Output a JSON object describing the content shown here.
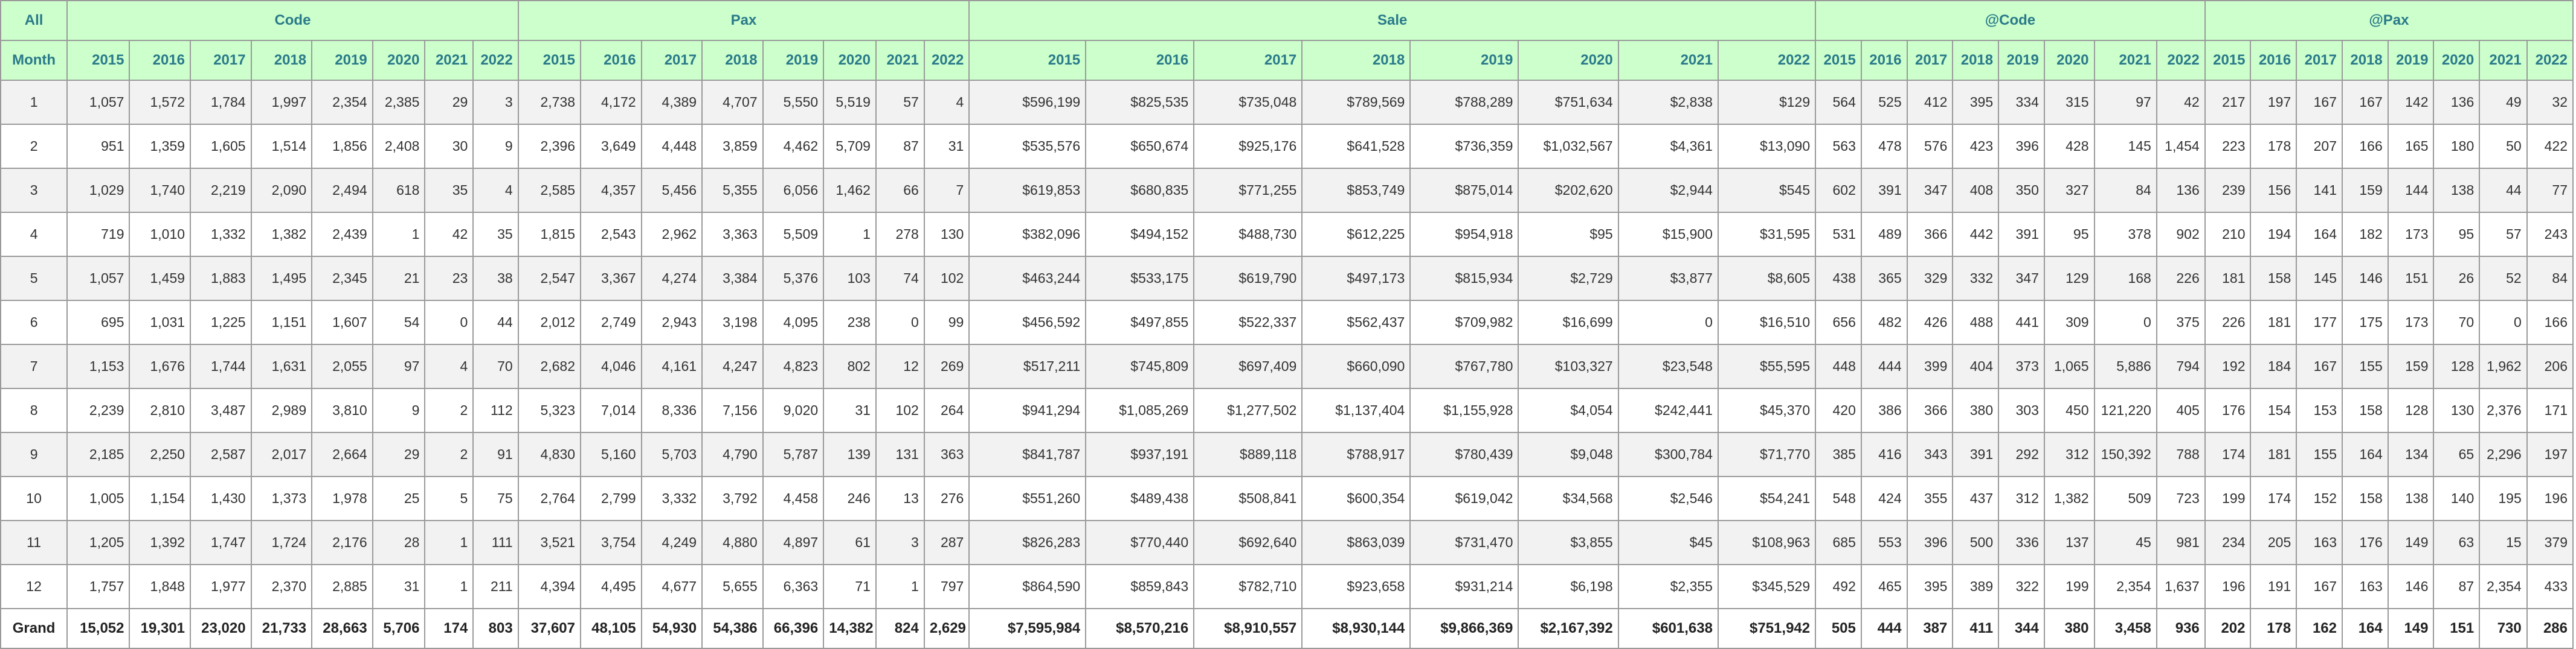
{
  "header": {
    "corner": "All",
    "month": "Month",
    "groups": [
      {
        "name": "Code"
      },
      {
        "name": "Pax"
      },
      {
        "name": "Sale"
      },
      {
        "name": "@Code"
      },
      {
        "name": "@Pax"
      }
    ],
    "years": [
      "2015",
      "2016",
      "2017",
      "2018",
      "2019",
      "2020",
      "2021",
      "2022"
    ]
  },
  "rows": [
    {
      "month": "1",
      "code": [
        "1,057",
        "1,572",
        "1,784",
        "1,997",
        "2,354",
        "2,385",
        "29",
        "3"
      ],
      "pax": [
        "2,738",
        "4,172",
        "4,389",
        "4,707",
        "5,550",
        "5,519",
        "57",
        "4"
      ],
      "sale": [
        "$596,199",
        "$825,535",
        "$735,048",
        "$789,569",
        "$788,289",
        "$751,634",
        "$2,838",
        "$129"
      ],
      "acode": [
        "564",
        "525",
        "412",
        "395",
        "334",
        "315",
        "97",
        "42"
      ],
      "apax": [
        "217",
        "197",
        "167",
        "167",
        "142",
        "136",
        "49",
        "32"
      ]
    },
    {
      "month": "2",
      "code": [
        "951",
        "1,359",
        "1,605",
        "1,514",
        "1,856",
        "2,408",
        "30",
        "9"
      ],
      "pax": [
        "2,396",
        "3,649",
        "4,448",
        "3,859",
        "4,462",
        "5,709",
        "87",
        "31"
      ],
      "sale": [
        "$535,576",
        "$650,674",
        "$925,176",
        "$641,528",
        "$736,359",
        "$1,032,567",
        "$4,361",
        "$13,090"
      ],
      "acode": [
        "563",
        "478",
        "576",
        "423",
        "396",
        "428",
        "145",
        "1,454"
      ],
      "apax": [
        "223",
        "178",
        "207",
        "166",
        "165",
        "180",
        "50",
        "422"
      ]
    },
    {
      "month": "3",
      "code": [
        "1,029",
        "1,740",
        "2,219",
        "2,090",
        "2,494",
        "618",
        "35",
        "4"
      ],
      "pax": [
        "2,585",
        "4,357",
        "5,456",
        "5,355",
        "6,056",
        "1,462",
        "66",
        "7"
      ],
      "sale": [
        "$619,853",
        "$680,835",
        "$771,255",
        "$853,749",
        "$875,014",
        "$202,620",
        "$2,944",
        "$545"
      ],
      "acode": [
        "602",
        "391",
        "347",
        "408",
        "350",
        "327",
        "84",
        "136"
      ],
      "apax": [
        "239",
        "156",
        "141",
        "159",
        "144",
        "138",
        "44",
        "77"
      ]
    },
    {
      "month": "4",
      "code": [
        "719",
        "1,010",
        "1,332",
        "1,382",
        "2,439",
        "1",
        "42",
        "35"
      ],
      "pax": [
        "1,815",
        "2,543",
        "2,962",
        "3,363",
        "5,509",
        "1",
        "278",
        "130"
      ],
      "sale": [
        "$382,096",
        "$494,152",
        "$488,730",
        "$612,225",
        "$954,918",
        "$95",
        "$15,900",
        "$31,595"
      ],
      "acode": [
        "531",
        "489",
        "366",
        "442",
        "391",
        "95",
        "378",
        "902"
      ],
      "apax": [
        "210",
        "194",
        "164",
        "182",
        "173",
        "95",
        "57",
        "243"
      ]
    },
    {
      "month": "5",
      "code": [
        "1,057",
        "1,459",
        "1,883",
        "1,495",
        "2,345",
        "21",
        "23",
        "38"
      ],
      "pax": [
        "2,547",
        "3,367",
        "4,274",
        "3,384",
        "5,376",
        "103",
        "74",
        "102"
      ],
      "sale": [
        "$463,244",
        "$533,175",
        "$619,790",
        "$497,173",
        "$815,934",
        "$2,729",
        "$3,877",
        "$8,605"
      ],
      "acode": [
        "438",
        "365",
        "329",
        "332",
        "347",
        "129",
        "168",
        "226"
      ],
      "apax": [
        "181",
        "158",
        "145",
        "146",
        "151",
        "26",
        "52",
        "84"
      ]
    },
    {
      "month": "6",
      "code": [
        "695",
        "1,031",
        "1,225",
        "1,151",
        "1,607",
        "54",
        "0",
        "44"
      ],
      "pax": [
        "2,012",
        "2,749",
        "2,943",
        "3,198",
        "4,095",
        "238",
        "0",
        "99"
      ],
      "sale": [
        "$456,592",
        "$497,855",
        "$522,337",
        "$562,437",
        "$709,982",
        "$16,699",
        "0",
        "$16,510"
      ],
      "acode": [
        "656",
        "482",
        "426",
        "488",
        "441",
        "309",
        "0",
        "375"
      ],
      "apax": [
        "226",
        "181",
        "177",
        "175",
        "173",
        "70",
        "0",
        "166"
      ]
    },
    {
      "month": "7",
      "code": [
        "1,153",
        "1,676",
        "1,744",
        "1,631",
        "2,055",
        "97",
        "4",
        "70"
      ],
      "pax": [
        "2,682",
        "4,046",
        "4,161",
        "4,247",
        "4,823",
        "802",
        "12",
        "269"
      ],
      "sale": [
        "$517,211",
        "$745,809",
        "$697,409",
        "$660,090",
        "$767,780",
        "$103,327",
        "$23,548",
        "$55,595"
      ],
      "acode": [
        "448",
        "444",
        "399",
        "404",
        "373",
        "1,065",
        "5,886",
        "794"
      ],
      "apax": [
        "192",
        "184",
        "167",
        "155",
        "159",
        "128",
        "1,962",
        "206"
      ]
    },
    {
      "month": "8",
      "code": [
        "2,239",
        "2,810",
        "3,487",
        "2,989",
        "3,810",
        "9",
        "2",
        "112"
      ],
      "pax": [
        "5,323",
        "7,014",
        "8,336",
        "7,156",
        "9,020",
        "31",
        "102",
        "264"
      ],
      "sale": [
        "$941,294",
        "$1,085,269",
        "$1,277,502",
        "$1,137,404",
        "$1,155,928",
        "$4,054",
        "$242,441",
        "$45,370"
      ],
      "acode": [
        "420",
        "386",
        "366",
        "380",
        "303",
        "450",
        "121,220",
        "405"
      ],
      "apax": [
        "176",
        "154",
        "153",
        "158",
        "128",
        "130",
        "2,376",
        "171"
      ]
    },
    {
      "month": "9",
      "code": [
        "2,185",
        "2,250",
        "2,587",
        "2,017",
        "2,664",
        "29",
        "2",
        "91"
      ],
      "pax": [
        "4,830",
        "5,160",
        "5,703",
        "4,790",
        "5,787",
        "139",
        "131",
        "363"
      ],
      "sale": [
        "$841,787",
        "$937,191",
        "$889,118",
        "$788,917",
        "$780,439",
        "$9,048",
        "$300,784",
        "$71,770"
      ],
      "acode": [
        "385",
        "416",
        "343",
        "391",
        "292",
        "312",
        "150,392",
        "788"
      ],
      "apax": [
        "174",
        "181",
        "155",
        "164",
        "134",
        "65",
        "2,296",
        "197"
      ]
    },
    {
      "month": "10",
      "code": [
        "1,005",
        "1,154",
        "1,430",
        "1,373",
        "1,978",
        "25",
        "5",
        "75"
      ],
      "pax": [
        "2,764",
        "2,799",
        "3,332",
        "3,792",
        "4,458",
        "246",
        "13",
        "276"
      ],
      "sale": [
        "$551,260",
        "$489,438",
        "$508,841",
        "$600,354",
        "$619,042",
        "$34,568",
        "$2,546",
        "$54,241"
      ],
      "acode": [
        "548",
        "424",
        "355",
        "437",
        "312",
        "1,382",
        "509",
        "723"
      ],
      "apax": [
        "199",
        "174",
        "152",
        "158",
        "138",
        "140",
        "195",
        "196"
      ]
    },
    {
      "month": "11",
      "code": [
        "1,205",
        "1,392",
        "1,747",
        "1,724",
        "2,176",
        "28",
        "1",
        "111"
      ],
      "pax": [
        "3,521",
        "3,754",
        "4,249",
        "4,880",
        "4,897",
        "61",
        "3",
        "287"
      ],
      "sale": [
        "$826,283",
        "$770,440",
        "$692,640",
        "$863,039",
        "$731,470",
        "$3,855",
        "$45",
        "$108,963"
      ],
      "acode": [
        "685",
        "553",
        "396",
        "500",
        "336",
        "137",
        "45",
        "981"
      ],
      "apax": [
        "234",
        "205",
        "163",
        "176",
        "149",
        "63",
        "15",
        "379"
      ]
    },
    {
      "month": "12",
      "code": [
        "1,757",
        "1,848",
        "1,977",
        "2,370",
        "2,885",
        "31",
        "1",
        "211"
      ],
      "pax": [
        "4,394",
        "4,495",
        "4,677",
        "5,655",
        "6,363",
        "71",
        "1",
        "797"
      ],
      "sale": [
        "$864,590",
        "$859,843",
        "$782,710",
        "$923,658",
        "$931,214",
        "$6,198",
        "$2,355",
        "$345,529"
      ],
      "acode": [
        "492",
        "465",
        "395",
        "389",
        "322",
        "199",
        "2,354",
        "1,637"
      ],
      "apax": [
        "196",
        "191",
        "167",
        "163",
        "146",
        "87",
        "2,354",
        "433"
      ]
    }
  ],
  "grand": {
    "month": "Grand",
    "code": [
      "15,052",
      "19,301",
      "23,020",
      "21,733",
      "28,663",
      "5,706",
      "174",
      "803"
    ],
    "pax": [
      "37,607",
      "48,105",
      "54,930",
      "54,386",
      "66,396",
      "14,382",
      "824",
      "2,629"
    ],
    "sale": [
      "$7,595,984",
      "$8,570,216",
      "$8,910,557",
      "$8,930,144",
      "$9,866,369",
      "$2,167,392",
      "$601,638",
      "$751,942"
    ],
    "acode": [
      "505",
      "444",
      "387",
      "411",
      "344",
      "380",
      "3,458",
      "936"
    ],
    "apax": [
      "202",
      "178",
      "162",
      "164",
      "149",
      "151",
      "730",
      "286"
    ]
  }
}
